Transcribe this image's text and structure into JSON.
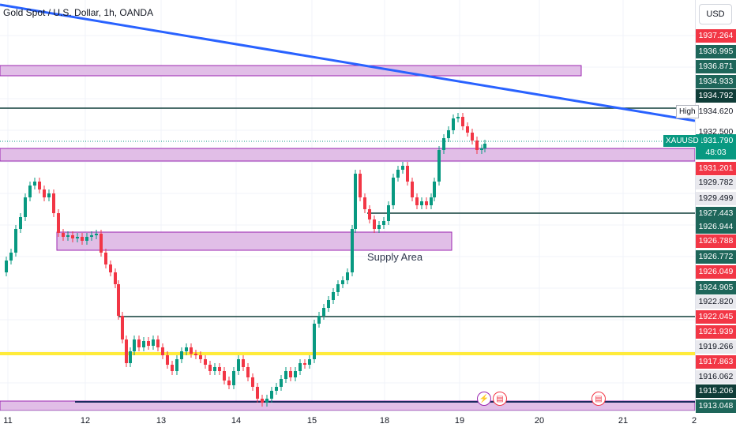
{
  "chart_title": "Gold Spot / U.S. Dollar, 1h, OANDA",
  "currency": "USD",
  "price_axis": [
    {
      "text": "1937.264",
      "bg": "#f23645",
      "fg": "#ffffff"
    },
    {
      "text": "1936.995",
      "bg": "#1e665a",
      "fg": "#ffffff"
    },
    {
      "text": "1936.871",
      "bg": "#1e665a",
      "fg": "#ffffff"
    },
    {
      "text": "1934.933",
      "bg": "#1e665a",
      "fg": "#ffffff"
    },
    {
      "text": "1934.792",
      "bg": "#0f3d38",
      "fg": "#ffffff"
    },
    {
      "text": "1934.620",
      "bg": "#ffffff",
      "fg": "#131722"
    },
    {
      "text": "1932.500",
      "bg": "#ffffff",
      "fg": "#131722"
    },
    {
      "text": "1931.790",
      "bg": "#089981",
      "fg": "#ffffff"
    },
    {
      "text": "48:03",
      "bg": "#089981",
      "fg": "#ffffff"
    },
    {
      "text": "1931.201",
      "bg": "#f23645",
      "fg": "#ffffff"
    },
    {
      "text": "1929.782",
      "bg": "#e9e9ee",
      "fg": "#131722"
    },
    {
      "text": "1929.499",
      "bg": "#e9e9ee",
      "fg": "#131722"
    },
    {
      "text": "1927.443",
      "bg": "#1e665a",
      "fg": "#ffffff"
    },
    {
      "text": "1926.944",
      "bg": "#1e665a",
      "fg": "#ffffff"
    },
    {
      "text": "1926.788",
      "bg": "#f23645",
      "fg": "#ffffff"
    },
    {
      "text": "1926.772",
      "bg": "#1e665a",
      "fg": "#ffffff"
    },
    {
      "text": "1926.049",
      "bg": "#f23645",
      "fg": "#ffffff"
    },
    {
      "text": "1924.905",
      "bg": "#1e665a",
      "fg": "#ffffff"
    },
    {
      "text": "1922.820",
      "bg": "#e9e9ee",
      "fg": "#131722"
    },
    {
      "text": "1922.045",
      "bg": "#f23645",
      "fg": "#ffffff"
    },
    {
      "text": "1921.939",
      "bg": "#f23645",
      "fg": "#ffffff"
    },
    {
      "text": "1919.266",
      "bg": "#e9e9ee",
      "fg": "#131722"
    },
    {
      "text": "1917.863",
      "bg": "#f23645",
      "fg": "#ffffff"
    },
    {
      "text": "1916.062",
      "bg": "#e9e9ee",
      "fg": "#131722"
    },
    {
      "text": "1915.206",
      "bg": "#0f3d38",
      "fg": "#ffffff"
    },
    {
      "text": "1913.048",
      "bg": "#1e665a",
      "fg": "#ffffff"
    }
  ],
  "time_axis": [
    "11",
    "12",
    "13",
    "14",
    "15",
    "18",
    "19",
    "20",
    "21",
    "2"
  ],
  "annotations": {
    "supply_area": "Supply Area",
    "high_tag": "High",
    "symbol_tag": "XAUUSD"
  },
  "colors": {
    "up": "#089981",
    "down": "#f23645",
    "zone_fill": "#e1bee7",
    "zone_border": "#9c27b0",
    "trendline": "#2962ff",
    "level": "#0f3d38",
    "yellow": "#ffeb3b"
  },
  "icons": [
    "flash-icon",
    "us-flag-icon",
    "us-flag-icon"
  ]
}
